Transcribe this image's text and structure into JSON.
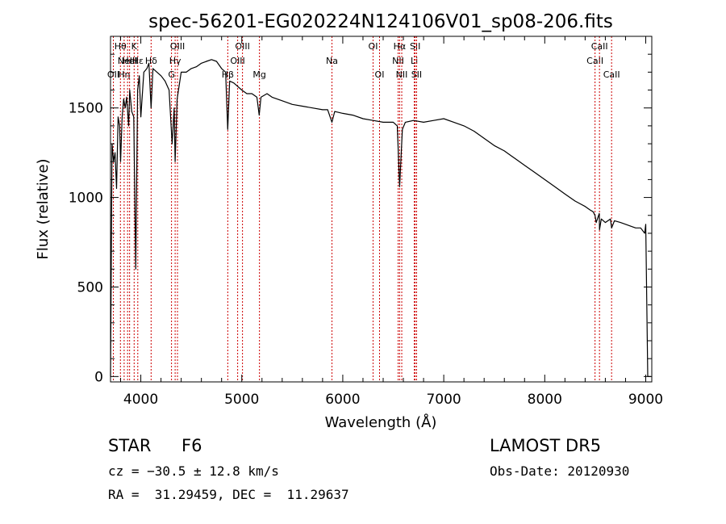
{
  "chart_data": {
    "type": "line",
    "title": "spec-56201-EG020224N124106V01_sp08-206.fits",
    "xlabel": "Wavelength (Å)",
    "ylabel": "Flux (relative)",
    "xlim": [
      3700,
      9060
    ],
    "ylim": [
      -30,
      1900
    ],
    "xticks": [
      4000,
      5000,
      6000,
      7000,
      8000,
      9000
    ],
    "yticks": [
      0,
      500,
      1000,
      1500
    ],
    "grid": false,
    "line_color": "#000000",
    "marker_color": "#cc0000",
    "series": [
      {
        "x": [
          3700,
          3715,
          3730,
          3745,
          3760,
          3775,
          3790,
          3800,
          3815,
          3830,
          3845,
          3860,
          3880,
          3890,
          3910,
          3930,
          3950,
          3968,
          3985,
          4000,
          4030,
          4060,
          4080,
          4102,
          4120,
          4160,
          4200,
          4240,
          4280,
          4310,
          4330,
          4340,
          4360,
          4400,
          4450,
          4500,
          4550,
          4600,
          4650,
          4700,
          4750,
          4800,
          4840,
          4861,
          4880,
          4920,
          4960,
          5000,
          5050,
          5100,
          5150,
          5172,
          5190,
          5250,
          5300,
          5400,
          5500,
          5600,
          5700,
          5800,
          5850,
          5893,
          5920,
          6000,
          6100,
          6200,
          6300,
          6400,
          6500,
          6540,
          6563,
          6590,
          6620,
          6700,
          6800,
          6900,
          7000,
          7100,
          7200,
          7300,
          7400,
          7500,
          7600,
          7700,
          7800,
          7900,
          8000,
          8100,
          8200,
          8300,
          8400,
          8450,
          8480,
          8498,
          8510,
          8540,
          8542,
          8560,
          8600,
          8650,
          8662,
          8690,
          8750,
          8800,
          8850,
          8900,
          8950,
          8990,
          9000,
          9020,
          9050
        ],
        "values": [
          0,
          1300,
          1200,
          1250,
          1050,
          1450,
          1400,
          1200,
          1450,
          1550,
          1500,
          1560,
          1400,
          1600,
          1480,
          1450,
          600,
          1600,
          1680,
          1450,
          1700,
          1720,
          1750,
          1500,
          1720,
          1700,
          1680,
          1650,
          1600,
          1300,
          1500,
          1200,
          1550,
          1700,
          1700,
          1720,
          1730,
          1750,
          1760,
          1770,
          1760,
          1720,
          1700,
          1380,
          1650,
          1640,
          1620,
          1600,
          1580,
          1580,
          1560,
          1460,
          1560,
          1580,
          1560,
          1540,
          1520,
          1510,
          1500,
          1490,
          1490,
          1420,
          1480,
          1470,
          1460,
          1440,
          1430,
          1420,
          1420,
          1400,
          1060,
          1380,
          1420,
          1430,
          1420,
          1430,
          1440,
          1420,
          1400,
          1370,
          1330,
          1290,
          1260,
          1220,
          1180,
          1140,
          1100,
          1060,
          1020,
          980,
          950,
          930,
          920,
          900,
          860,
          910,
          820,
          880,
          860,
          880,
          830,
          870,
          860,
          850,
          840,
          830,
          830,
          800,
          850,
          0,
          0
        ]
      }
    ],
    "line_markers": [
      {
        "wavelength": 3728,
        "label": "OII",
        "row": 2
      },
      {
        "wavelength": 3798,
        "label": "Hθ",
        "row": 0
      },
      {
        "wavelength": 3835,
        "label": "Hη",
        "row": 2
      },
      {
        "wavelength": 3869,
        "label": "NeIII",
        "row": 1
      },
      {
        "wavelength": 3889,
        "label": "HeI",
        "row": 1
      },
      {
        "wavelength": 3934,
        "label": "K",
        "row": 0
      },
      {
        "wavelength": 3970,
        "label": "Hε",
        "row": 1
      },
      {
        "wavelength": 4102,
        "label": "Hδ",
        "row": 1
      },
      {
        "wavelength": 4304,
        "label": "G",
        "row": 2
      },
      {
        "wavelength": 4340,
        "label": "Hγ",
        "row": 1
      },
      {
        "wavelength": 4363,
        "label": "OIII",
        "row": 0
      },
      {
        "wavelength": 4861,
        "label": "Hβ",
        "row": 2
      },
      {
        "wavelength": 4959,
        "label": "OIII",
        "row": 1
      },
      {
        "wavelength": 5007,
        "label": "OIII",
        "row": 0
      },
      {
        "wavelength": 5175,
        "label": "Mg",
        "row": 2
      },
      {
        "wavelength": 5893,
        "label": "Na",
        "row": 1
      },
      {
        "wavelength": 6300,
        "label": "OI",
        "row": 0
      },
      {
        "wavelength": 6364,
        "label": "OI",
        "row": 2
      },
      {
        "wavelength": 6548,
        "label": "NII",
        "row": 1
      },
      {
        "wavelength": 6563,
        "label": "Hα",
        "row": 0
      },
      {
        "wavelength": 6584,
        "label": "NII",
        "row": 2
      },
      {
        "wavelength": 6708,
        "label": "Li",
        "row": 1
      },
      {
        "wavelength": 6717,
        "label": "SII",
        "row": 0
      },
      {
        "wavelength": 6731,
        "label": "SII",
        "row": 2
      },
      {
        "wavelength": 8498,
        "label": "CaII",
        "row": 1
      },
      {
        "wavelength": 8542,
        "label": "CaII",
        "row": 0
      },
      {
        "wavelength": 8662,
        "label": "CaII",
        "row": 2
      }
    ]
  },
  "info": {
    "class_label": "STAR",
    "subclass": "F6",
    "cz": "cz = −30.5 ± 12.8 km/s",
    "coords": "RA =  31.29459, DEC =  11.29637",
    "survey": "LAMOST DR5",
    "obs_date": "Obs-Date: 20120930"
  }
}
